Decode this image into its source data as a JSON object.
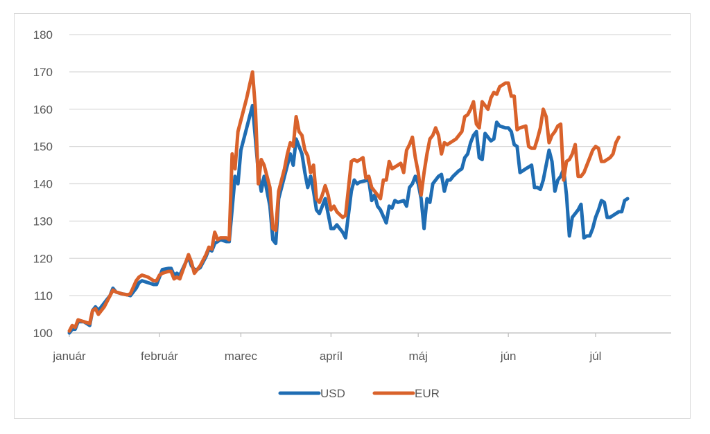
{
  "chart_data": {
    "type": "line",
    "title": "",
    "xlabel": "",
    "ylabel": "",
    "ylim": [
      100,
      180
    ],
    "yticks": [
      100,
      110,
      120,
      130,
      140,
      150,
      160,
      170,
      180
    ],
    "grid": "horizontal",
    "legend_position": "bottom",
    "x_axis_labels": [
      {
        "label": "január",
        "at": 0
      },
      {
        "label": "február",
        "at": 31
      },
      {
        "label": "marec",
        "at": 59
      },
      {
        "label": "apríl",
        "at": 90
      },
      {
        "label": "máj",
        "at": 120
      },
      {
        "label": "jún",
        "at": 151
      },
      {
        "label": "júl",
        "at": 181
      }
    ],
    "x_range": [
      0,
      207
    ],
    "series": [
      {
        "name": "USD",
        "color": "#1f6db3",
        "points": [
          [
            0,
            100
          ],
          [
            1,
            101
          ],
          [
            2,
            101
          ],
          [
            3,
            103
          ],
          [
            5,
            103
          ],
          [
            7,
            102
          ],
          [
            8,
            106
          ],
          [
            9,
            107
          ],
          [
            10,
            106
          ],
          [
            12,
            108
          ],
          [
            14,
            110
          ],
          [
            15,
            112
          ],
          [
            16,
            111
          ],
          [
            18,
            110.5
          ],
          [
            20,
            110.2
          ],
          [
            21,
            110
          ],
          [
            23,
            112
          ],
          [
            24,
            113.5
          ],
          [
            25,
            114
          ],
          [
            27,
            113.5
          ],
          [
            29,
            113
          ],
          [
            30,
            113
          ],
          [
            31,
            115
          ],
          [
            32,
            117
          ],
          [
            34,
            117.3
          ],
          [
            35,
            117.3
          ],
          [
            36,
            115.5
          ],
          [
            37,
            116
          ],
          [
            38,
            115.5
          ],
          [
            41,
            120.5
          ],
          [
            42,
            118
          ],
          [
            43,
            117
          ],
          [
            44,
            117
          ],
          [
            45,
            117.5
          ],
          [
            47,
            120.5
          ],
          [
            48,
            122.5
          ],
          [
            49,
            122
          ],
          [
            50,
            124
          ],
          [
            52,
            125
          ],
          [
            54,
            124.5
          ],
          [
            55,
            124.5
          ],
          [
            57,
            142
          ],
          [
            58,
            140
          ],
          [
            59,
            149
          ],
          [
            61,
            155
          ],
          [
            63,
            161
          ],
          [
            64,
            152
          ],
          [
            65,
            143
          ],
          [
            66,
            138
          ],
          [
            67,
            142
          ],
          [
            69,
            134
          ],
          [
            70,
            125
          ],
          [
            71,
            124
          ],
          [
            72,
            136
          ],
          [
            74,
            142
          ],
          [
            76,
            148
          ],
          [
            77,
            145
          ],
          [
            78,
            152
          ],
          [
            80,
            148
          ],
          [
            81,
            143
          ],
          [
            82,
            139
          ],
          [
            83,
            142
          ],
          [
            84,
            138
          ],
          [
            85,
            133
          ],
          [
            86,
            132
          ],
          [
            87,
            134
          ],
          [
            88,
            136
          ],
          [
            89,
            132
          ],
          [
            90,
            128
          ],
          [
            91,
            128
          ],
          [
            92,
            129
          ],
          [
            94,
            127
          ],
          [
            95,
            125.5
          ],
          [
            97,
            138
          ],
          [
            98,
            141
          ],
          [
            99,
            140
          ],
          [
            100,
            140.5
          ],
          [
            103,
            141
          ],
          [
            104,
            135.5
          ],
          [
            105,
            137
          ],
          [
            106,
            134
          ],
          [
            107,
            133
          ],
          [
            109,
            129.5
          ],
          [
            110,
            134
          ],
          [
            111,
            133.5
          ],
          [
            112,
            135.5
          ],
          [
            113,
            135
          ],
          [
            115,
            135.5
          ],
          [
            116,
            134
          ],
          [
            117,
            139
          ],
          [
            118,
            140
          ],
          [
            119,
            142
          ],
          [
            120,
            140
          ],
          [
            121,
            136
          ],
          [
            122,
            128
          ],
          [
            123,
            136
          ],
          [
            124,
            135
          ],
          [
            125,
            140
          ],
          [
            126,
            141
          ],
          [
            127,
            142
          ],
          [
            128,
            142.5
          ],
          [
            129,
            138
          ],
          [
            130,
            141
          ],
          [
            131,
            141
          ],
          [
            132,
            142
          ],
          [
            134,
            143.5
          ],
          [
            135,
            144
          ],
          [
            136,
            147
          ],
          [
            137,
            148
          ],
          [
            138,
            151
          ],
          [
            139,
            153
          ],
          [
            140,
            154
          ],
          [
            141,
            147
          ],
          [
            142,
            146.5
          ],
          [
            143,
            153.5
          ],
          [
            144,
            152.5
          ],
          [
            145,
            151.5
          ],
          [
            146,
            152
          ],
          [
            147,
            156.5
          ],
          [
            148,
            155.5
          ],
          [
            150,
            155
          ],
          [
            151,
            155
          ],
          [
            152,
            154
          ],
          [
            153,
            150.5
          ],
          [
            154,
            150
          ],
          [
            155,
            143
          ],
          [
            156,
            143.5
          ],
          [
            157,
            144
          ],
          [
            158,
            144.5
          ],
          [
            159,
            145
          ],
          [
            160,
            139
          ],
          [
            161,
            139
          ],
          [
            162,
            138.5
          ],
          [
            163,
            141
          ],
          [
            164,
            145
          ],
          [
            165,
            149
          ],
          [
            166,
            146
          ],
          [
            167,
            138
          ],
          [
            168,
            141
          ],
          [
            169,
            142
          ],
          [
            170,
            144
          ],
          [
            171,
            137
          ],
          [
            172,
            126
          ],
          [
            173,
            131
          ],
          [
            174,
            132
          ],
          [
            175,
            133
          ],
          [
            176,
            134.5
          ],
          [
            177,
            125.5
          ],
          [
            178,
            126
          ],
          [
            179,
            126
          ],
          [
            180,
            128
          ],
          [
            181,
            131
          ],
          [
            182,
            133
          ],
          [
            183,
            135.5
          ],
          [
            184,
            135
          ],
          [
            185,
            131
          ],
          [
            186,
            131
          ],
          [
            187,
            131.5
          ],
          [
            188,
            132
          ],
          [
            189,
            132.5
          ],
          [
            190,
            132.5
          ],
          [
            191,
            135.5
          ],
          [
            192,
            136
          ]
        ]
      },
      {
        "name": "EUR",
        "color": "#d9622b",
        "points": [
          [
            0,
            100.5
          ],
          [
            1,
            102
          ],
          [
            2,
            101.5
          ],
          [
            3,
            103.5
          ],
          [
            5,
            103
          ],
          [
            7,
            102.5
          ],
          [
            8,
            106
          ],
          [
            9,
            106.5
          ],
          [
            10,
            105
          ],
          [
            12,
            107
          ],
          [
            14,
            110
          ],
          [
            15,
            111.5
          ],
          [
            16,
            111
          ],
          [
            18,
            110.5
          ],
          [
            20,
            110.2
          ],
          [
            21,
            110.5
          ],
          [
            23,
            114
          ],
          [
            24,
            115
          ],
          [
            25,
            115.5
          ],
          [
            27,
            115
          ],
          [
            29,
            114
          ],
          [
            30,
            114
          ],
          [
            31,
            115.5
          ],
          [
            32,
            116
          ],
          [
            34,
            116.5
          ],
          [
            35,
            116.5
          ],
          [
            36,
            114.5
          ],
          [
            37,
            115
          ],
          [
            38,
            114.5
          ],
          [
            41,
            121
          ],
          [
            42,
            119
          ],
          [
            43,
            116
          ],
          [
            44,
            117
          ],
          [
            45,
            118
          ],
          [
            47,
            121
          ],
          [
            48,
            123
          ],
          [
            49,
            122.5
          ],
          [
            50,
            127
          ],
          [
            51,
            125
          ],
          [
            52,
            125.5
          ],
          [
            54,
            125.5
          ],
          [
            55,
            125
          ],
          [
            56,
            148
          ],
          [
            57,
            144
          ],
          [
            58,
            154
          ],
          [
            61,
            163
          ],
          [
            63,
            170
          ],
          [
            64,
            160
          ],
          [
            65,
            140
          ],
          [
            66,
            146.5
          ],
          [
            67,
            145
          ],
          [
            69,
            139
          ],
          [
            70,
            128
          ],
          [
            71,
            127.5
          ],
          [
            72,
            138
          ],
          [
            74,
            144
          ],
          [
            75,
            148
          ],
          [
            76,
            151
          ],
          [
            77,
            150
          ],
          [
            78,
            158
          ],
          [
            79,
            154
          ],
          [
            80,
            153
          ],
          [
            81,
            149
          ],
          [
            82,
            147.5
          ],
          [
            83,
            143
          ],
          [
            84,
            145
          ],
          [
            85,
            136
          ],
          [
            86,
            135
          ],
          [
            87,
            137
          ],
          [
            88,
            139.5
          ],
          [
            89,
            137
          ],
          [
            90,
            133
          ],
          [
            91,
            134
          ],
          [
            92,
            132.5
          ],
          [
            94,
            131
          ],
          [
            95,
            131.5
          ],
          [
            97,
            146
          ],
          [
            98,
            146.5
          ],
          [
            99,
            146
          ],
          [
            101,
            147
          ],
          [
            102,
            141.5
          ],
          [
            103,
            142
          ],
          [
            104,
            139
          ],
          [
            106,
            137
          ],
          [
            107,
            136
          ],
          [
            108,
            141
          ],
          [
            109,
            141
          ],
          [
            110,
            146
          ],
          [
            111,
            144
          ],
          [
            113,
            145
          ],
          [
            114,
            145.5
          ],
          [
            115,
            143
          ],
          [
            116,
            149
          ],
          [
            117,
            150.5
          ],
          [
            118,
            152.5
          ],
          [
            119,
            147
          ],
          [
            120,
            143
          ],
          [
            121,
            137
          ],
          [
            122,
            143
          ],
          [
            123,
            148
          ],
          [
            124,
            152
          ],
          [
            125,
            153
          ],
          [
            126,
            155
          ],
          [
            127,
            153
          ],
          [
            128,
            148
          ],
          [
            129,
            151
          ],
          [
            130,
            150.5
          ],
          [
            131,
            151
          ],
          [
            133,
            152
          ],
          [
            135,
            154
          ],
          [
            136,
            158
          ],
          [
            137,
            158.5
          ],
          [
            138,
            160
          ],
          [
            139,
            162
          ],
          [
            140,
            156
          ],
          [
            141,
            155
          ],
          [
            142,
            162
          ],
          [
            143,
            161
          ],
          [
            144,
            160
          ],
          [
            145,
            163
          ],
          [
            146,
            164.5
          ],
          [
            147,
            164
          ],
          [
            148,
            166
          ],
          [
            149,
            166.5
          ],
          [
            150,
            167
          ],
          [
            151,
            167
          ],
          [
            152,
            163.5
          ],
          [
            153,
            163.5
          ],
          [
            154,
            154.5
          ],
          [
            155,
            155
          ],
          [
            157,
            155.5
          ],
          [
            158,
            150
          ],
          [
            159,
            149.5
          ],
          [
            160,
            149.5
          ],
          [
            161,
            152
          ],
          [
            162,
            155
          ],
          [
            163,
            160
          ],
          [
            164,
            158
          ],
          [
            165,
            151
          ],
          [
            166,
            153
          ],
          [
            167,
            154
          ],
          [
            168,
            155.5
          ],
          [
            169,
            156
          ],
          [
            170,
            141
          ],
          [
            171,
            146
          ],
          [
            172,
            146.5
          ],
          [
            173,
            148
          ],
          [
            174,
            150.5
          ],
          [
            175,
            142
          ],
          [
            176,
            142
          ],
          [
            177,
            143
          ],
          [
            178,
            145
          ],
          [
            179,
            147
          ],
          [
            180,
            149
          ],
          [
            181,
            150
          ],
          [
            182,
            149.5
          ],
          [
            183,
            146
          ],
          [
            184,
            146
          ],
          [
            185,
            146.5
          ],
          [
            186,
            147
          ],
          [
            187,
            148
          ],
          [
            188,
            151
          ],
          [
            189,
            152.5
          ]
        ]
      }
    ]
  }
}
